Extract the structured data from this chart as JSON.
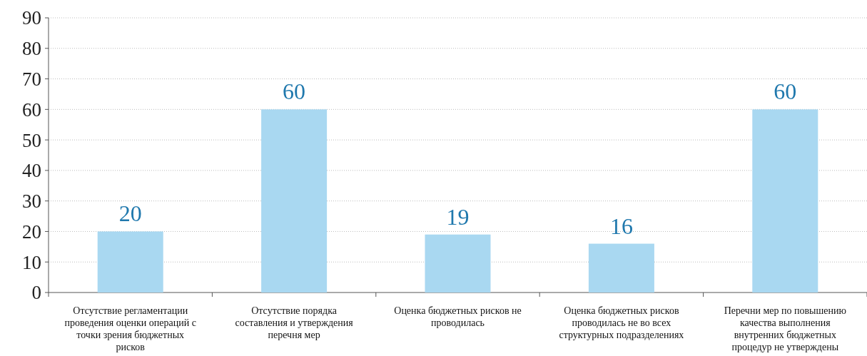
{
  "chart_data": {
    "type": "bar",
    "categories": [
      "Отсутствие регламентации проведения оценки операций с точки зрения бюджетных рисков",
      "Отсутствие порядка составления и утверждения перечня мер",
      "Оценка бюджетных рисков не проводилась",
      "Оценка бюджетных рисков проводилась не во всех структурных подразделениях",
      "Перечни мер по повышению качества выполнения внутренних бюджетных процедур не утверждены"
    ],
    "values": [
      20,
      60,
      19,
      16,
      60
    ],
    "color": "#a9d8f1",
    "ylim": [
      0,
      90
    ],
    "yticks": [
      0,
      10,
      20,
      30,
      40,
      50,
      60,
      70,
      80,
      90
    ],
    "grid": "y",
    "data_labels": true
  }
}
